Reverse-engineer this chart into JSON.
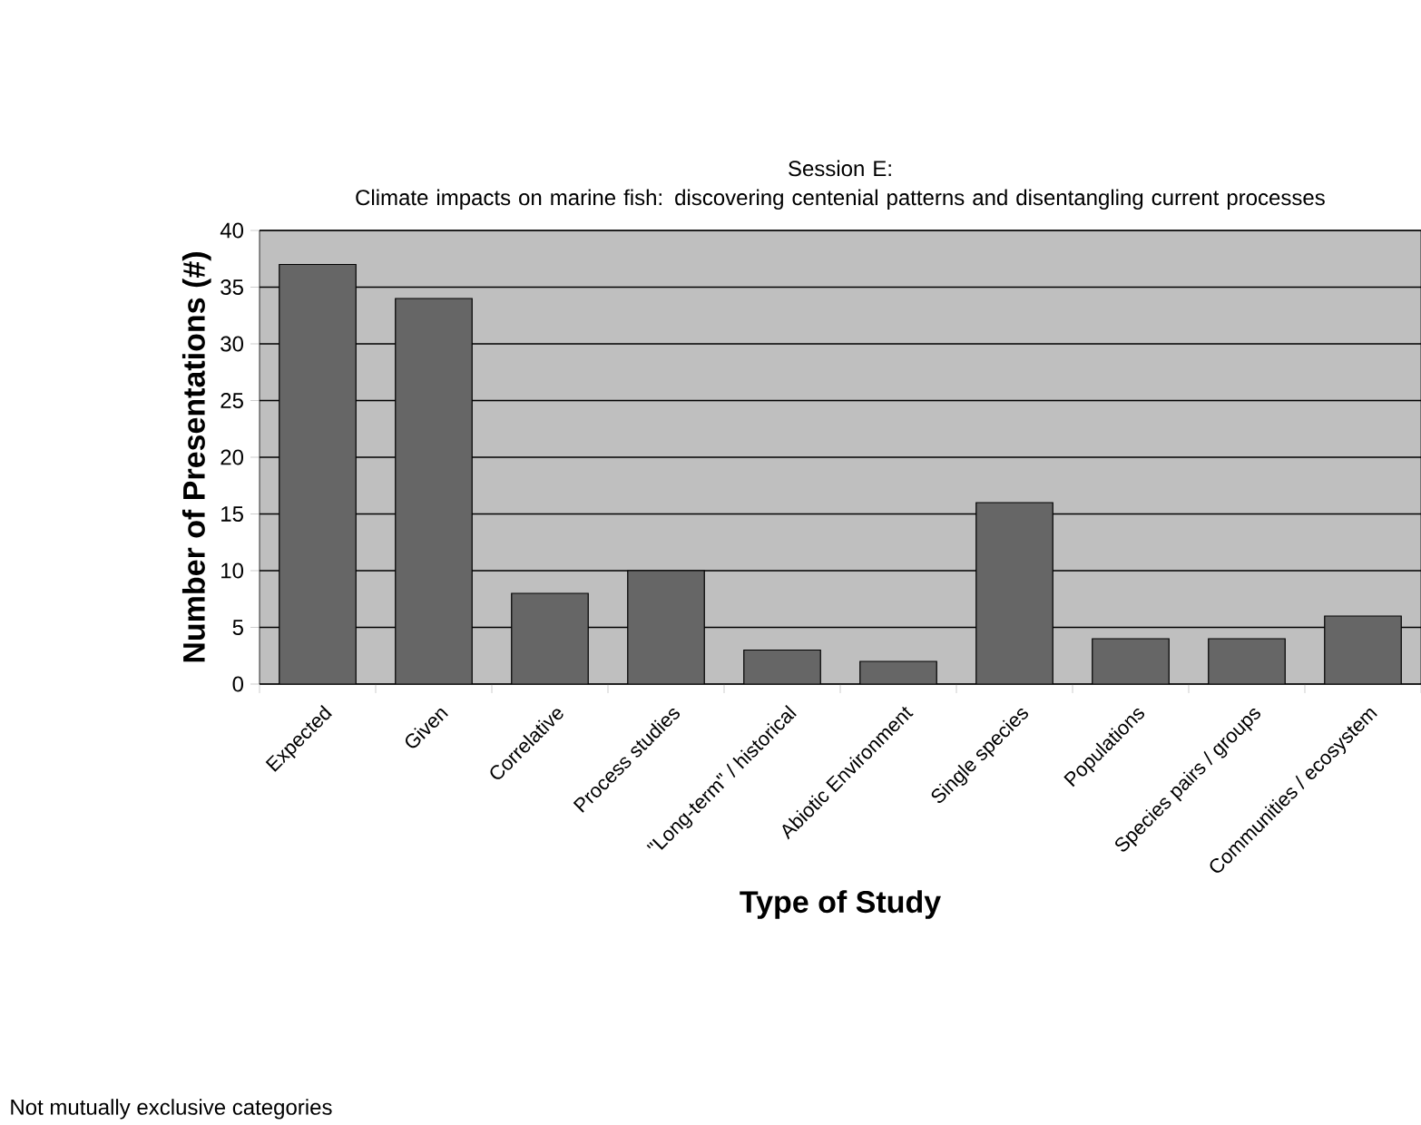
{
  "chart_data": {
    "type": "bar",
    "title": "Session E:",
    "subtitle": "Climate impacts on marine fish: discovering centenial patterns and disentangling current processes",
    "xlabel": "Type of Study",
    "ylabel": "Number of Presentations (#)",
    "categories": [
      "Expected",
      "Given",
      "Correlative",
      "Process studies",
      "\"Long-term\" / historical",
      "Abiotic Environment",
      "Single species",
      "Populations",
      "Species pairs / groups",
      "Communities / ecosystem"
    ],
    "values": [
      37,
      34,
      8,
      10,
      3,
      2,
      16,
      4,
      4,
      6
    ],
    "color": "#666666",
    "ylim": [
      0,
      40
    ],
    "yticks": [
      0,
      5,
      10,
      15,
      20,
      25,
      30,
      35,
      40
    ],
    "grid": "y",
    "annotations": [
      "Not mutually exclusive categories"
    ]
  }
}
